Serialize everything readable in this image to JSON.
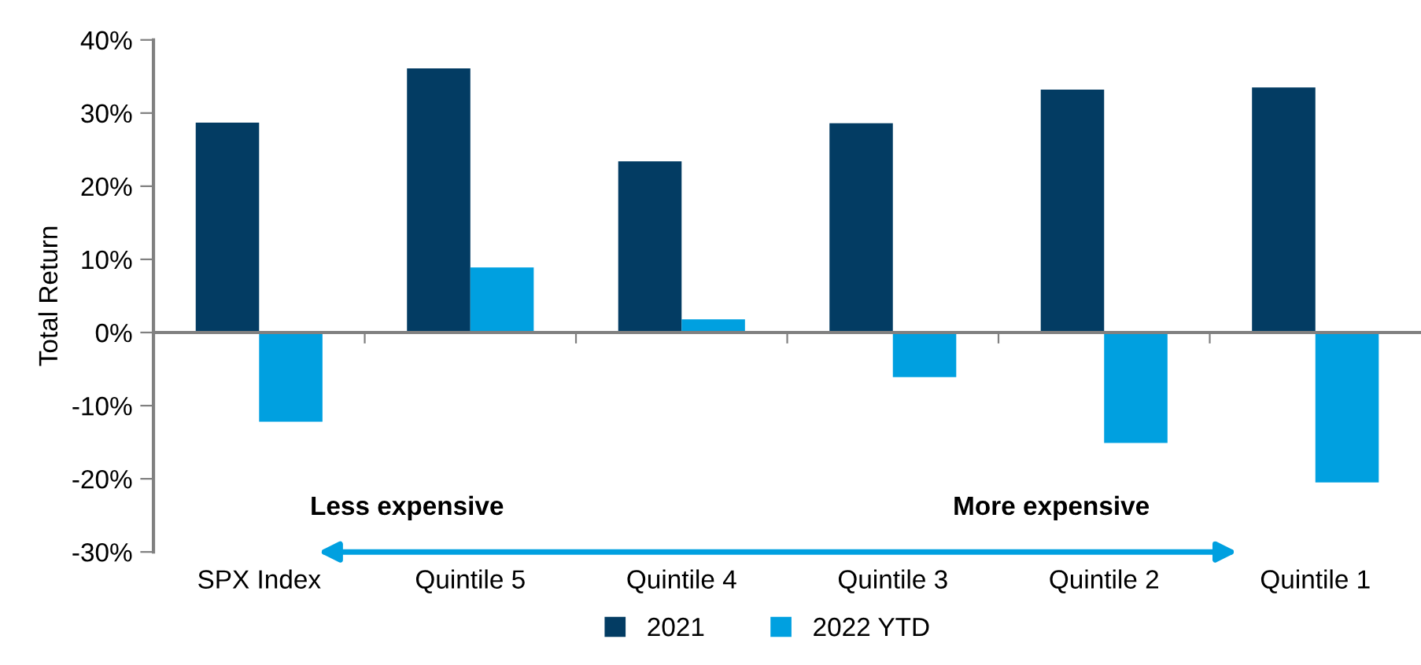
{
  "chart_data": {
    "type": "bar",
    "ylabel": "Total Return",
    "categories": [
      "SPX Index",
      "Quintile 5",
      "Quintile 4",
      "Quintile 3",
      "Quintile 2",
      "Quintile 1"
    ],
    "series": [
      {
        "name": "2021",
        "color": "#033c63",
        "values": [
          28.7,
          36.1,
          23.4,
          28.6,
          33.2,
          33.5
        ]
      },
      {
        "name": "2022 YTD",
        "color": "#00a0e0",
        "values": [
          -12.2,
          8.9,
          1.8,
          -6.1,
          -15.1,
          -20.5
        ]
      }
    ],
    "ylim": [
      -30,
      40
    ],
    "yticks": [
      {
        "value": -30,
        "label": "-30%"
      },
      {
        "value": -20,
        "label": "-20%"
      },
      {
        "value": -10,
        "label": "-10%"
      },
      {
        "value": 0,
        "label": "0%"
      },
      {
        "value": 10,
        "label": "10%"
      },
      {
        "value": 20,
        "label": "20%"
      },
      {
        "value": 30,
        "label": "30%"
      },
      {
        "value": 40,
        "label": "40%"
      }
    ],
    "annotations": [
      "Less expensive",
      "More expensive"
    ],
    "legend": "bottom"
  }
}
